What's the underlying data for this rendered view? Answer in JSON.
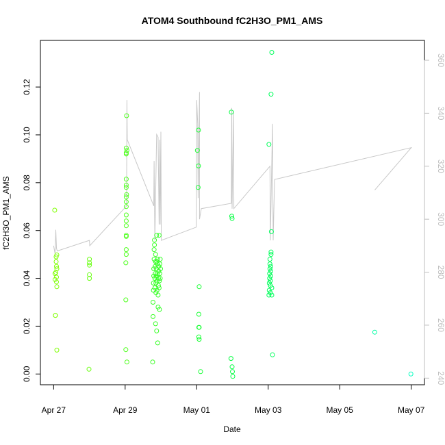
{
  "chart_data": {
    "type": "scatter",
    "title": "ATOM4 Southbound fC2H3O_PM1_AMS",
    "xlabel": "Date",
    "ylabel": "fC2H3O_PM1_AMS",
    "x_ticks": [
      {
        "day": 0,
        "label": "Apr 27"
      },
      {
        "day": 2,
        "label": "Apr 29"
      },
      {
        "day": 4,
        "label": "May 01"
      },
      {
        "day": 6,
        "label": "May 03"
      },
      {
        "day": 8,
        "label": "May 05"
      },
      {
        "day": 10,
        "label": "May 07"
      }
    ],
    "xlim_days": [
      -0.37,
      10.37
    ],
    "y_ticks": [
      0.0,
      0.02,
      0.04,
      0.06,
      0.08,
      0.1,
      0.12
    ],
    "ylim": [
      -0.0045,
      0.1395
    ],
    "y2_ticks": [
      240,
      260,
      280,
      300,
      320,
      340,
      360
    ],
    "y2lim": [
      237.5,
      367.5
    ],
    "grid": false,
    "series": [
      {
        "kind": "points",
        "color_scale": [
          "#80ff00",
          "#00ff40",
          "#00ffbf"
        ],
        "points": [
          [
            0.03,
            0.0685
          ],
          [
            0.04,
            0.0395
          ],
          [
            0.04,
            0.042
          ],
          [
            0.05,
            0.0245
          ],
          [
            0.05,
            0.0245
          ],
          [
            0.06,
            0.0425
          ],
          [
            0.07,
            0.049
          ],
          [
            0.07,
            0.047
          ],
          [
            0.08,
            0.0405
          ],
          [
            0.08,
            0.0385
          ],
          [
            0.08,
            0.045
          ],
          [
            0.09,
            0.0365
          ],
          [
            0.09,
            0.044
          ],
          [
            0.09,
            0.0498
          ],
          [
            0.09,
            0.01
          ],
          [
            0.99,
            0.002
          ],
          [
            1.0,
            0.048
          ],
          [
            1.0,
            0.0465
          ],
          [
            1.0,
            0.0455
          ],
          [
            1.0,
            0.0415
          ],
          [
            1.0,
            0.04
          ],
          [
            2.02,
            0.0465
          ],
          [
            2.02,
            0.031
          ],
          [
            2.02,
            0.0102
          ],
          [
            2.03,
            0.092
          ],
          [
            2.03,
            0.0925
          ],
          [
            2.03,
            0.0945
          ],
          [
            2.03,
            0.0815
          ],
          [
            2.03,
            0.079
          ],
          [
            2.03,
            0.078
          ],
          [
            2.03,
            0.074
          ],
          [
            2.03,
            0.072
          ],
          [
            2.03,
            0.07
          ],
          [
            2.03,
            0.0665
          ],
          [
            2.03,
            0.064
          ],
          [
            2.03,
            0.062
          ],
          [
            2.03,
            0.058
          ],
          [
            2.03,
            0.0575
          ],
          [
            2.03,
            0.052
          ],
          [
            2.03,
            0.05
          ],
          [
            2.04,
            0.108
          ],
          [
            2.04,
            0.075
          ],
          [
            2.05,
            0.005
          ],
          [
            2.05,
            0.0935
          ],
          [
            2.77,
            0.005
          ],
          [
            2.78,
            0.024
          ],
          [
            2.78,
            0.03
          ],
          [
            2.79,
            0.035
          ],
          [
            2.79,
            0.038
          ],
          [
            2.8,
            0.041
          ],
          [
            2.8,
            0.044
          ],
          [
            2.81,
            0.048
          ],
          [
            2.81,
            0.052
          ],
          [
            2.82,
            0.054
          ],
          [
            2.82,
            0.056
          ],
          [
            2.83,
            0.036
          ],
          [
            2.83,
            0.04
          ],
          [
            2.84,
            0.042
          ],
          [
            2.84,
            0.045
          ],
          [
            2.85,
            0.047
          ],
          [
            2.85,
            0.05
          ],
          [
            2.85,
            0.021
          ],
          [
            2.86,
            0.034
          ],
          [
            2.86,
            0.038
          ],
          [
            2.87,
            0.041
          ],
          [
            2.87,
            0.044
          ],
          [
            2.88,
            0.047
          ],
          [
            2.88,
            0.058
          ],
          [
            2.88,
            0.018
          ],
          [
            2.89,
            0.035
          ],
          [
            2.89,
            0.039
          ],
          [
            2.9,
            0.042
          ],
          [
            2.9,
            0.046
          ],
          [
            2.91,
            0.048
          ],
          [
            2.91,
            0.013
          ],
          [
            2.92,
            0.028
          ],
          [
            2.92,
            0.033
          ],
          [
            2.93,
            0.037
          ],
          [
            2.93,
            0.04
          ],
          [
            2.94,
            0.043
          ],
          [
            2.94,
            0.045
          ],
          [
            2.95,
            0.058
          ],
          [
            2.95,
            0.036
          ],
          [
            2.96,
            0.027
          ],
          [
            2.96,
            0.039
          ],
          [
            2.97,
            0.042
          ],
          [
            2.97,
            0.046
          ],
          [
            2.98,
            0.04
          ],
          [
            2.98,
            0.048
          ],
          [
            2.99,
            0.044
          ],
          [
            4.02,
            0.0935
          ],
          [
            4.04,
            0.078
          ],
          [
            4.05,
            0.102
          ],
          [
            4.05,
            0.087
          ],
          [
            4.06,
            0.025
          ],
          [
            4.06,
            0.0195
          ],
          [
            4.06,
            0.0155
          ],
          [
            4.07,
            0.0145
          ],
          [
            4.07,
            0.0365
          ],
          [
            4.07,
            0.0195
          ],
          [
            4.11,
            0.001
          ],
          [
            4.96,
            0.0065
          ],
          [
            4.97,
            0.1095
          ],
          [
            4.98,
            0.066
          ],
          [
            4.99,
            0.065
          ],
          [
            4.99,
            0.003
          ],
          [
            5.0,
            0.001
          ],
          [
            5.01,
            -0.001
          ],
          [
            6.02,
            0.033
          ],
          [
            6.02,
            0.096
          ],
          [
            6.03,
            0.035
          ],
          [
            6.03,
            0.038
          ],
          [
            6.04,
            0.04
          ],
          [
            6.04,
            0.042
          ],
          [
            6.05,
            0.044
          ],
          [
            6.05,
            0.046
          ],
          [
            6.05,
            0.048
          ],
          [
            6.06,
            0.034
          ],
          [
            6.06,
            0.037
          ],
          [
            6.06,
            0.039
          ],
          [
            6.07,
            0.041
          ],
          [
            6.07,
            0.043
          ],
          [
            6.07,
            0.045
          ],
          [
            6.08,
            0.117
          ],
          [
            6.08,
            0.05
          ],
          [
            6.08,
            0.051
          ],
          [
            6.09,
            0.0595
          ],
          [
            6.1,
            0.1345
          ],
          [
            6.1,
            0.036
          ],
          [
            6.1,
            0.033
          ],
          [
            6.12,
            0.008
          ],
          [
            8.98,
            0.0175
          ],
          [
            9.99,
            0.0
          ]
        ]
      },
      {
        "kind": "line",
        "axis": "right",
        "color": "#c8c8c8",
        "points": [
          [
            0.0,
            290.0
          ],
          [
            0.04,
            287.0
          ],
          [
            0.06,
            296.0
          ],
          [
            0.08,
            289.0
          ],
          [
            0.1,
            288.0
          ],
          [
            1.0,
            292.0
          ],
          [
            1.01,
            290.0
          ],
          [
            2.04,
            305.0
          ],
          [
            2.05,
            345.0
          ],
          [
            2.06,
            330.0
          ],
          [
            2.8,
            305.0
          ],
          [
            2.81,
            322.0
          ],
          [
            2.83,
            292.0
          ],
          [
            2.88,
            332.0
          ],
          [
            2.92,
            331.0
          ],
          [
            2.95,
            298.0
          ],
          [
            2.97,
            330.0
          ],
          [
            2.98,
            298.0
          ],
          [
            3.0,
            333.0
          ],
          [
            3.01,
            292.0
          ],
          [
            3.99,
            297.0
          ],
          [
            4.0,
            345.0
          ],
          [
            4.03,
            336.0
          ],
          [
            4.04,
            308.0
          ],
          [
            4.08,
            348.0
          ],
          [
            4.08,
            300.0
          ],
          [
            4.13,
            304.0
          ],
          [
            4.97,
            306.0
          ],
          [
            4.98,
            342.0
          ],
          [
            4.99,
            304.0
          ],
          [
            5.03,
            341.0
          ],
          [
            5.04,
            304.0
          ],
          [
            6.05,
            320.0
          ],
          [
            6.06,
            292.0
          ],
          [
            6.12,
            336.0
          ],
          [
            6.14,
            292.0
          ],
          [
            6.18,
            315.0
          ],
          [
            10.0,
            327.0
          ],
          [
            8.98,
            311.0
          ]
        ]
      }
    ]
  }
}
